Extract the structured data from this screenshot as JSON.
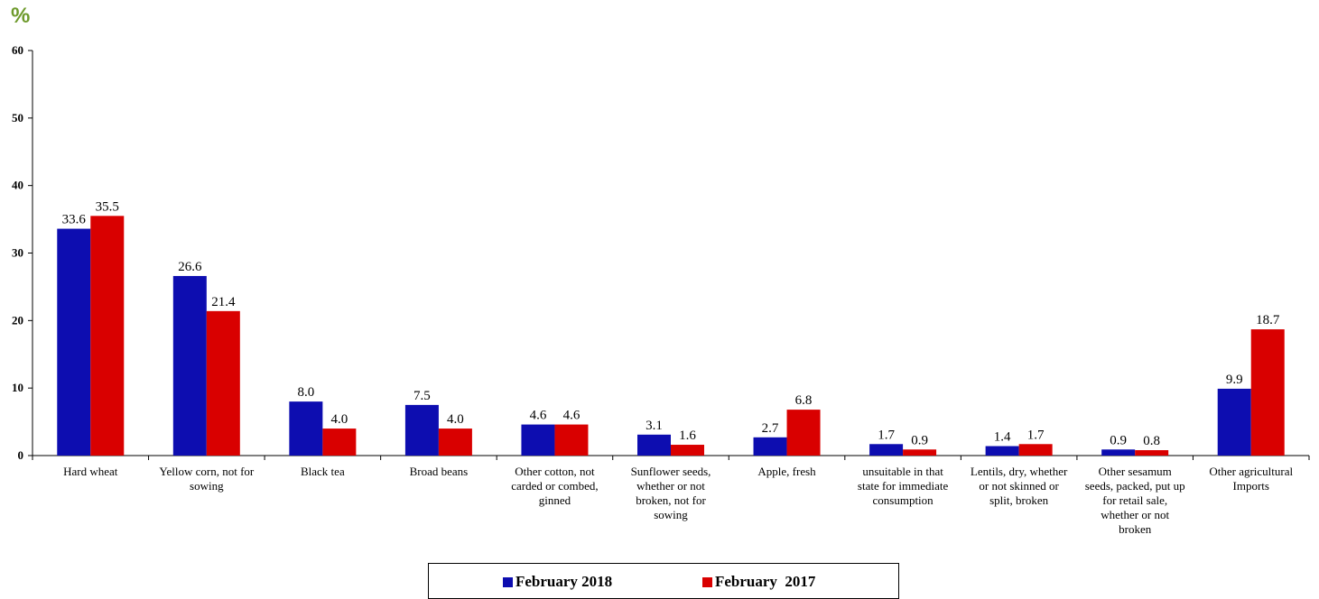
{
  "unit_label": "%",
  "colors": {
    "series_2018": "#0D0DB0",
    "series_2017": "#D90000",
    "unit": "#6E9A2C"
  },
  "chart_data": {
    "type": "bar",
    "title": "",
    "xlabel": "",
    "ylabel": "%",
    "ylim": [
      0,
      60
    ],
    "yticks": [
      0,
      10,
      20,
      30,
      40,
      50,
      60
    ],
    "grid": false,
    "legend_position": "bottom",
    "categories": [
      [
        "Hard wheat"
      ],
      [
        "Yellow corn, not for",
        "sowing"
      ],
      [
        "Black tea"
      ],
      [
        "Broad beans"
      ],
      [
        "Other cotton, not",
        "carded or combed,",
        "ginned"
      ],
      [
        "Sunflower seeds,",
        "whether or not",
        "broken, not for",
        "sowing"
      ],
      [
        "Apple, fresh"
      ],
      [
        "unsuitable in that",
        "state for immediate",
        "consumption"
      ],
      [
        "Lentils, dry, whether",
        "or not skinned or",
        "split, broken"
      ],
      [
        "Other sesamum",
        "seeds, packed, put up",
        "for retail sale,",
        "whether or not",
        "broken"
      ],
      [
        "Other agricultural",
        "Imports"
      ]
    ],
    "series": [
      {
        "name": "February 2018",
        "values": [
          33.6,
          26.6,
          8.0,
          7.5,
          4.6,
          3.1,
          2.7,
          1.7,
          1.4,
          0.9,
          9.9
        ],
        "labels": [
          "33.6",
          "26.6",
          "8.0",
          "7.5",
          "4.6",
          "3.1",
          "2.7",
          "1.7",
          "1.4",
          "0.9",
          "9.9"
        ]
      },
      {
        "name": "February  2017",
        "values": [
          35.5,
          21.4,
          4.0,
          4.0,
          4.6,
          1.6,
          6.8,
          0.9,
          1.7,
          0.8,
          18.7
        ],
        "labels": [
          "35.5",
          "21.4",
          "4.0",
          "4.0",
          "4.6",
          "1.6",
          "6.8",
          "0.9",
          "1.7",
          "0.8",
          "18.7"
        ]
      }
    ]
  }
}
